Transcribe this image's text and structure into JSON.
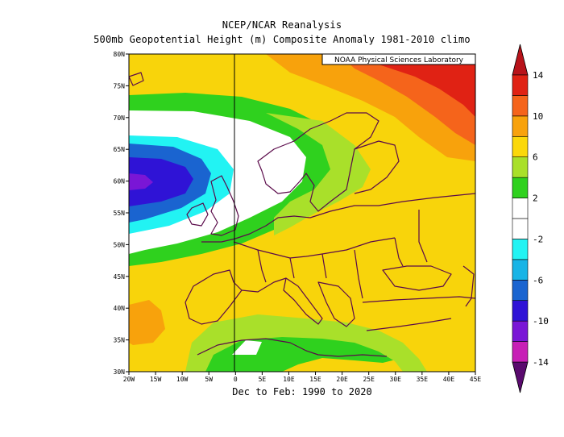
{
  "title_line1": "NCEP/NCAR Reanalysis",
  "title_line2": "500mb Geopotential Height (m) Composite Anomaly 1981-2010 climo",
  "subtitle": "Dec to Feb: 1990 to 2020",
  "credit": "NOAA Physical Sciences Laboratory",
  "axes": {
    "lat_labels": [
      "80N",
      "75N",
      "70N",
      "65N",
      "60N",
      "55N",
      "50N",
      "45N",
      "40N",
      "35N",
      "30N"
    ],
    "lon_labels": [
      "20W",
      "15W",
      "10W",
      "5W",
      "0",
      "5E",
      "10E",
      "15E",
      "20E",
      "25E",
      "30E",
      "35E",
      "40E",
      "45E"
    ],
    "lat_range": [
      30,
      80
    ],
    "lon_range": [
      -20,
      45
    ]
  },
  "colorbar": {
    "labels": [
      "14",
      "10",
      "6",
      "2",
      "-2",
      "-6",
      "-10",
      "-14"
    ],
    "levels": [
      -14,
      -12,
      -10,
      -8,
      -6,
      -4,
      -2,
      0,
      2,
      4,
      6,
      8,
      10,
      12,
      14
    ],
    "colors": [
      "#5a0a6e",
      "#c71fb6",
      "#7a16d6",
      "#2f13d6",
      "#1a64d0",
      "#18b4e6",
      "#22f3f3",
      "#ffffff",
      "#ffffff",
      "#2fd11e",
      "#a9e02a",
      "#fbd80a",
      "#f8a20c",
      "#f5641b",
      "#e02214",
      "#b8131a"
    ]
  },
  "fields": {
    "background": "#f8d40b"
  }
}
